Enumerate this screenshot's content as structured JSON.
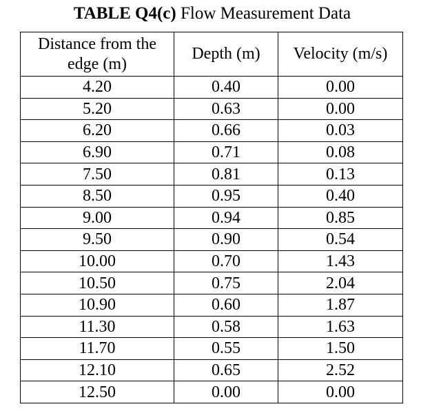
{
  "caption": {
    "label": "TABLE Q4(c)",
    "title": "Flow Measurement Data"
  },
  "table": {
    "headers": {
      "distance_line1": "Distance from the",
      "distance_line2": "edge (m)",
      "depth": "Depth (m)",
      "velocity": "Velocity (m/s)"
    },
    "rows": [
      {
        "distance": "4.20",
        "depth": "0.40",
        "velocity": "0.00"
      },
      {
        "distance": "5.20",
        "depth": "0.63",
        "velocity": "0.00"
      },
      {
        "distance": "6.20",
        "depth": "0.66",
        "velocity": "0.03"
      },
      {
        "distance": "6.90",
        "depth": "0.71",
        "velocity": "0.08"
      },
      {
        "distance": "7.50",
        "depth": "0.81",
        "velocity": "0.13"
      },
      {
        "distance": "8.50",
        "depth": "0.95",
        "velocity": "0.40"
      },
      {
        "distance": "9.00",
        "depth": "0.94",
        "velocity": "0.85"
      },
      {
        "distance": "9.50",
        "depth": "0.90",
        "velocity": "0.54"
      },
      {
        "distance": "10.00",
        "depth": "0.70",
        "velocity": "1.43"
      },
      {
        "distance": "10.50",
        "depth": "0.75",
        "velocity": "2.04"
      },
      {
        "distance": "10.90",
        "depth": "0.60",
        "velocity": "1.87"
      },
      {
        "distance": "11.30",
        "depth": "0.58",
        "velocity": "1.63"
      },
      {
        "distance": "11.70",
        "depth": "0.55",
        "velocity": "1.50"
      },
      {
        "distance": "12.10",
        "depth": "0.65",
        "velocity": "2.52"
      },
      {
        "distance": "12.50",
        "depth": "0.00",
        "velocity": "0.00"
      }
    ]
  }
}
